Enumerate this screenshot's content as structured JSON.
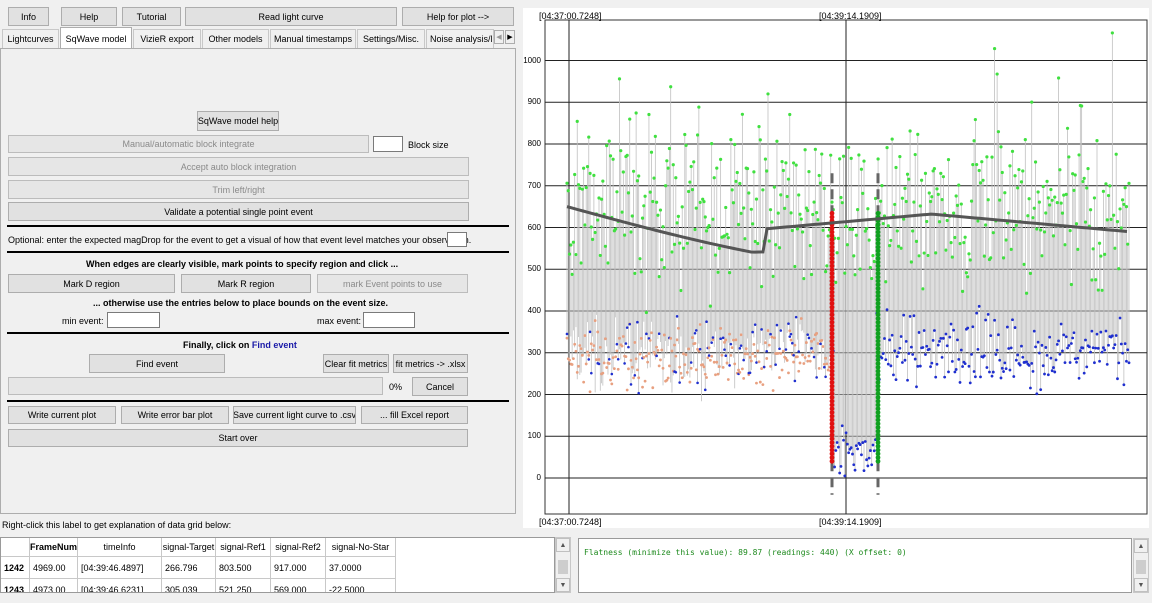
{
  "top_buttons": {
    "info": "Info",
    "help": "Help",
    "tutorial": "Tutorial",
    "read_light_curve": "Read light curve",
    "help_for_plot": "Help for plot -->"
  },
  "tabs": [
    "Lightcurves",
    "SqWave model",
    "VizieR export",
    "Other models",
    "Manual timestamps",
    "Settings/Misc.",
    "Noise analysis/l"
  ],
  "active_tab": "SqWave model",
  "sqwave": {
    "help_button": "SqWave model help",
    "manual_auto_block": "Manual/automatic block integrate",
    "block_size_label": "Block size",
    "accept_auto": "Accept auto block integration",
    "trim": "Trim left/right",
    "validate": "Validate a potential single point event",
    "optional_text": "Optional: enter the expected magDrop for the event to get a visual of how that event level matches your observation.",
    "edges_text": "When edges are clearly visible, mark points to specify region and click ...",
    "mark_d": "Mark D region",
    "mark_r": "Mark R region",
    "mark_event": "mark Event points to use",
    "otherwise_text": "... otherwise use the entries below to place bounds on the event size.",
    "min_event_label": "min event:",
    "max_event_label": "max event:",
    "finally_prefix": "Finally, click on ",
    "finally_link": "Find event",
    "find_event": "Find event",
    "clear_fit": "Clear fit metrics",
    "fit_metrics": "fit metrics -> .xlsx",
    "progress_text": "0%",
    "progress_value": 0,
    "cancel": "Cancel",
    "write_current_plot": "Write current plot",
    "write_error_bar": "Write error bar plot",
    "save_csv": "Save current light curve to .csv",
    "fill_excel": "... fill Excel report",
    "start_over": "Start over"
  },
  "data_grid_label": "Right-click this label to get explanation of data grid below:",
  "table": {
    "headers": [
      "FrameNum",
      "timeInfo",
      "signal-Target",
      "signal-Ref1",
      "signal-Ref2",
      "signal-No-Star"
    ],
    "rows": [
      {
        "index": "1242",
        "cells": [
          "4969.00",
          "[04:39:46.4897]",
          "266.796",
          "803.500",
          "917.000",
          "37.0000"
        ]
      },
      {
        "index": "1243",
        "cells": [
          "4973.00",
          "[04:39:46.6231]",
          "305.039",
          "521.250",
          "569.000",
          "-22.5000"
        ]
      }
    ]
  },
  "status_text": "Flatness (minimize this value): 89.87 (readings: 440) (X offset: 0)",
  "plot": {
    "top_left_time": "[04:37:00.7248]",
    "top_mid_time": "[04:39:14.1909]",
    "bottom_left_time": "[04:37:00.7248]",
    "bottom_mid_time": "[04:39:14.1909]",
    "y_ticks": [
      "1000",
      "900",
      "800",
      "700",
      "600",
      "500",
      "400",
      "300",
      "200",
      "100",
      "0"
    ],
    "colors": {
      "green": "#40e040",
      "blue": "#1f2fcf",
      "salmon": "#e8a080",
      "red": "#e01010",
      "darkgreen": "#10a020",
      "trend": "#555555"
    }
  }
}
